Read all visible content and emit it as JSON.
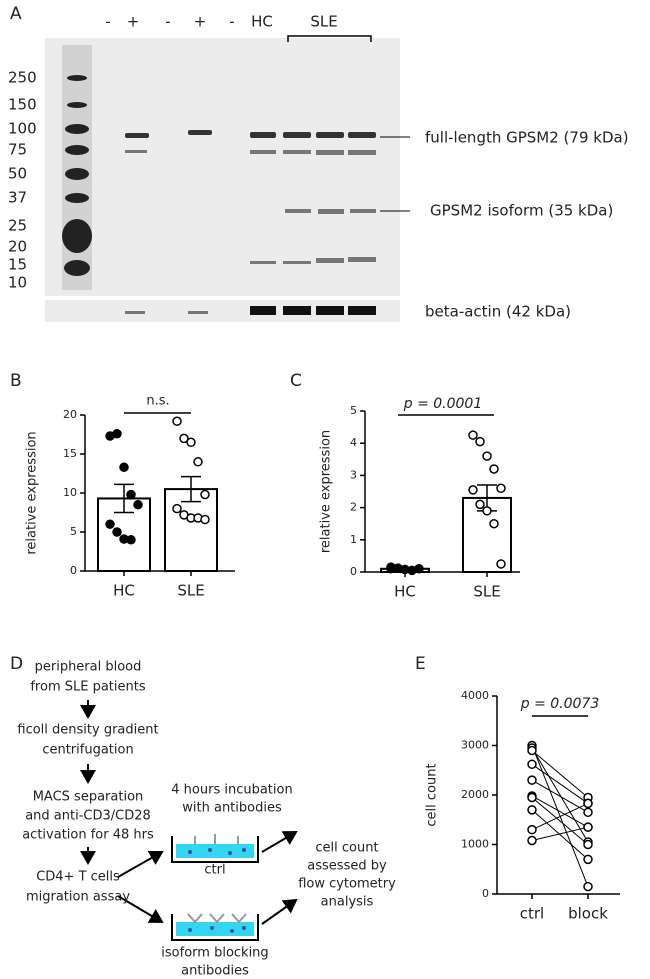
{
  "panel_labels": [
    "A",
    "B",
    "C",
    "D",
    "E"
  ],
  "blot": {
    "lane_labels": [
      "-",
      "+",
      "-",
      "+",
      "-",
      "HC",
      "SLE"
    ],
    "markers": [
      "250",
      "150",
      "100",
      "75",
      "50",
      "37",
      "25",
      "20",
      "15",
      "10"
    ],
    "band_labels": [
      "full-length GPSM2 (79 kDa)",
      "GPSM2 isoform (35 kDa)",
      "beta-actin (42 kDa)"
    ]
  },
  "diagram": {
    "nodes": [
      {
        "lines": [
          "peripheral blood",
          "from SLE patients"
        ]
      },
      {
        "lines": [
          "ficoll density gradient",
          "centrifugation"
        ]
      },
      {
        "lines": [
          "MACS separation",
          "and anti-CD3/CD28",
          "activation for 48 hrs"
        ]
      },
      {
        "lines": [
          "CD4+ T cells",
          "migration assay"
        ]
      },
      {
        "lines": [
          "4 hours incubation",
          "with antibodies"
        ]
      },
      {
        "lines": [
          "ctrl"
        ]
      },
      {
        "lines": [
          "isoform blocking",
          "antibodies"
        ]
      },
      {
        "lines": [
          "cell count",
          "assessed by",
          "flow cytometry",
          "analysis"
        ]
      }
    ]
  },
  "chart_data": [
    {
      "type": "bar",
      "ylabel": "relative expression",
      "categories": [
        "HC",
        "SLE"
      ],
      "values": [
        9.3,
        10.5
      ],
      "errors": [
        1.8,
        1.6
      ],
      "points": [
        [
          17.3,
          17.6,
          13.3,
          9.8,
          8.5,
          6.0,
          5.0,
          4.1,
          4.0
        ],
        [
          19.2,
          17.0,
          16.5,
          14.0,
          9.8,
          8.0,
          7.2,
          6.8,
          6.8,
          6.6
        ]
      ],
      "point_fills": [
        "#000000",
        "#ffffff"
      ],
      "ylim": [
        0,
        20
      ],
      "yticks": [
        0,
        5,
        10,
        15,
        20
      ],
      "annotation": "n.s."
    },
    {
      "type": "bar",
      "ylabel": "relative expression",
      "categories": [
        "HC",
        "SLE"
      ],
      "values": [
        0.1,
        2.3
      ],
      "errors": [
        0.02,
        0.4
      ],
      "points": [
        [
          0.1,
          0.12,
          0.08,
          0.05,
          0.1,
          0.15
        ],
        [
          4.25,
          4.05,
          3.6,
          3.2,
          2.6,
          2.55,
          2.1,
          1.9,
          1.5,
          0.25
        ]
      ],
      "point_fills": [
        "#000000",
        "#ffffff"
      ],
      "ylim": [
        0,
        5
      ],
      "yticks": [
        0,
        1,
        2,
        3,
        4,
        5
      ],
      "annotation": "p = 0.0001"
    },
    {
      "type": "line",
      "ylabel": "cell count",
      "categories": [
        "ctrl",
        "block"
      ],
      "color": "#000000",
      "series": [
        {
          "values": [
            3000,
            150
          ]
        },
        {
          "values": [
            2950,
            1050
          ]
        },
        {
          "values": [
            2900,
            1950
          ]
        },
        {
          "values": [
            2620,
            1830
          ]
        },
        {
          "values": [
            2300,
            1650
          ]
        },
        {
          "values": [
            1980,
            1350
          ]
        },
        {
          "values": [
            1950,
            1000
          ]
        },
        {
          "values": [
            1700,
            700
          ]
        },
        {
          "values": [
            1300,
            1830
          ]
        },
        {
          "values": [
            1080,
            1350
          ]
        }
      ],
      "ylim": [
        0,
        4000
      ],
      "yticks": [
        0,
        1000,
        2000,
        3000,
        4000
      ],
      "annotation": "p = 0.0073"
    }
  ]
}
